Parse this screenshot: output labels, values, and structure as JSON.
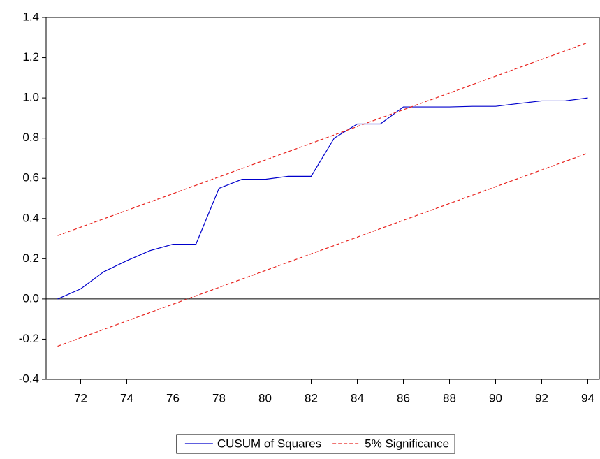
{
  "chart_data": {
    "type": "line",
    "x": [
      71,
      72,
      73,
      74,
      75,
      76,
      77,
      78,
      79,
      80,
      81,
      82,
      83,
      84,
      85,
      86,
      87,
      88,
      89,
      90,
      91,
      92,
      93,
      94
    ],
    "series": [
      {
        "name": "CUSUM of Squares",
        "color": "#0000cc",
        "values": [
          0.0,
          0.05,
          0.135,
          0.19,
          0.24,
          0.272,
          0.272,
          0.55,
          0.595,
          0.595,
          0.61,
          0.61,
          0.8,
          0.87,
          0.87,
          0.955,
          0.955,
          0.955,
          0.958,
          0.958,
          0.972,
          0.985,
          0.985,
          1.0
        ]
      },
      {
        "name": "5% Significance",
        "color": "#e8231e",
        "dashed": true,
        "x": [
          71,
          94
        ],
        "upper": [
          0.315,
          1.275
        ],
        "lower": [
          -0.235,
          0.725
        ]
      }
    ],
    "xlim": [
      70.5,
      94.5
    ],
    "xticks": [
      72,
      74,
      76,
      78,
      80,
      82,
      84,
      86,
      88,
      90,
      92,
      94
    ],
    "ylim": [
      -0.4,
      1.4
    ],
    "yticks": [
      1.4,
      1.2,
      {
        "value": 1,
        "label": "1.0"
      },
      0.8,
      0.6,
      0.4,
      0.2,
      {
        "value": 0,
        "label": "0.0"
      },
      -0.2,
      -0.4
    ],
    "zero_line": true,
    "legend": "bottom"
  }
}
